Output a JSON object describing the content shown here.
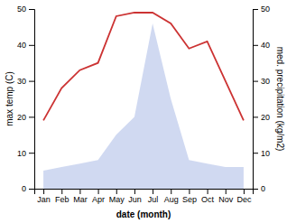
{
  "chart_data": {
    "type": "line",
    "categories": [
      "Jan",
      "Feb",
      "Mar",
      "Apr",
      "May",
      "Jun",
      "Jul",
      "Aug",
      "Sep",
      "Oct",
      "Nov",
      "Dec"
    ],
    "series": [
      {
        "type": "area",
        "axis": "y2",
        "color": "#b0c0e8",
        "values": [
          5,
          6,
          7,
          8,
          15,
          20,
          46,
          25,
          8,
          7,
          6,
          6
        ]
      },
      {
        "type": "line",
        "color": "#cc3333",
        "values": [
          19,
          28,
          33,
          35,
          48,
          49,
          49,
          46,
          39,
          41,
          30,
          19
        ]
      }
    ],
    "xlabel": "date (month)",
    "ylabel": "max temp (C)",
    "y2label": "med. precipitation (kg/m2)",
    "ylim": [
      0,
      50
    ],
    "yticks": [
      0,
      10,
      20,
      30,
      40,
      50
    ],
    "y2lim": [
      0,
      50
    ],
    "y2ticks": [
      0,
      10,
      20,
      30,
      40,
      50
    ],
    "grid": false
  }
}
